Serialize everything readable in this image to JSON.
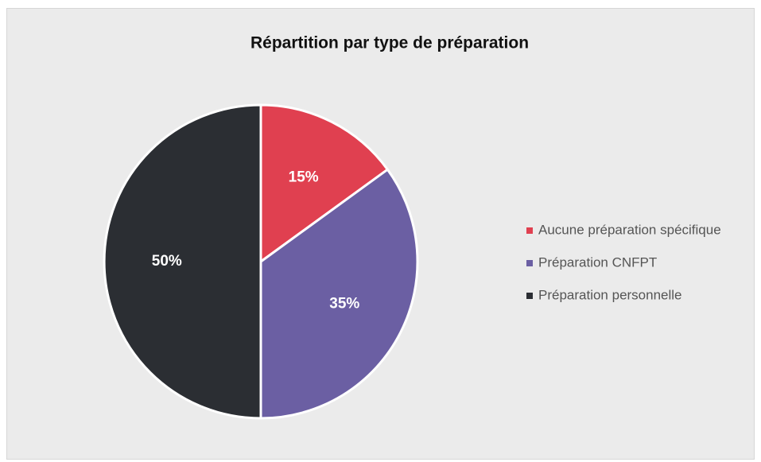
{
  "chart_data": {
    "type": "pie",
    "title": "Répartition par type de préparation",
    "categories": [
      "Aucune préparation spécifique",
      "Préparation CNFPT",
      "Préparation personnelle"
    ],
    "values": [
      15,
      35,
      50
    ],
    "value_labels": [
      "15%",
      "35%",
      "50%"
    ],
    "colors": [
      "#e04050",
      "#6b5fa3",
      "#2b2e33"
    ],
    "legend": "right"
  }
}
